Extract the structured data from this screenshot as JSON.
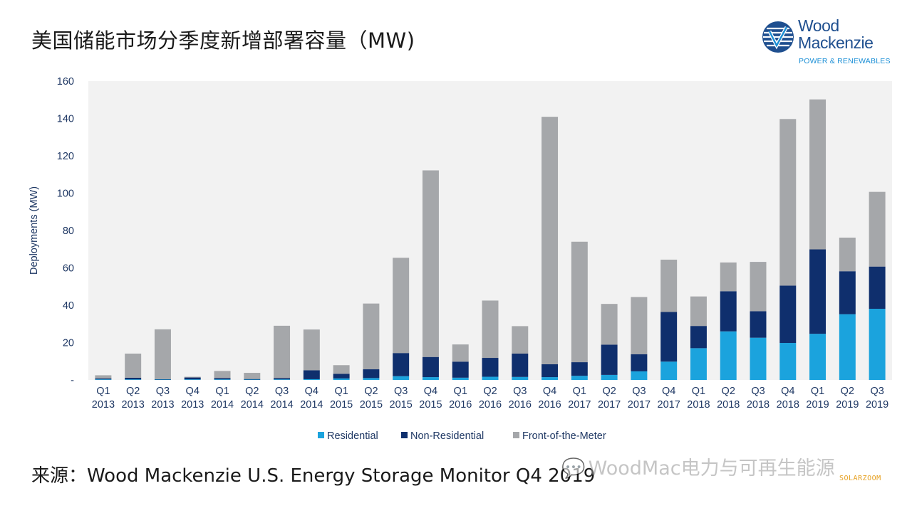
{
  "title": "美国储能市场分季度新增部署容量（MW)",
  "logo": {
    "line1": "Wood",
    "line2": "Mackenzie",
    "tagline": "POWER & RENEWABLES"
  },
  "source": "来源：Wood Mackenzie U.S. Energy Storage Monitor Q4 2019",
  "watermark": {
    "text": "WoodMac电力与可再生能源",
    "badge": "SOLARZOOM"
  },
  "colors": {
    "residential": "#1ba3dd",
    "non_residential": "#0f2f6d",
    "front_of_meter": "#a5a7aa",
    "plot_bg": "#f2f2f2",
    "axis_text": "#1f3864"
  },
  "chart_data": {
    "type": "bar",
    "stacked": true,
    "ylabel": "Deployments (MW)",
    "ylim": [
      0,
      160
    ],
    "yticks": [
      0,
      20,
      40,
      60,
      80,
      100,
      120,
      140,
      160
    ],
    "ytick_labels": [
      "-",
      "20",
      "40",
      "60",
      "80",
      "100",
      "120",
      "140",
      "160"
    ],
    "grid": false,
    "legend_position": "bottom",
    "categories": [
      [
        "Q1",
        "2013"
      ],
      [
        "Q2",
        "2013"
      ],
      [
        "Q3",
        "2013"
      ],
      [
        "Q4",
        "2013"
      ],
      [
        "Q1",
        "2014"
      ],
      [
        "Q2",
        "2014"
      ],
      [
        "Q3",
        "2014"
      ],
      [
        "Q4",
        "2014"
      ],
      [
        "Q1",
        "2015"
      ],
      [
        "Q2",
        "2015"
      ],
      [
        "Q3",
        "2015"
      ],
      [
        "Q4",
        "2015"
      ],
      [
        "Q1",
        "2016"
      ],
      [
        "Q2",
        "2016"
      ],
      [
        "Q3",
        "2016"
      ],
      [
        "Q4",
        "2016"
      ],
      [
        "Q1",
        "2017"
      ],
      [
        "Q2",
        "2017"
      ],
      [
        "Q3",
        "2017"
      ],
      [
        "Q4",
        "2017"
      ],
      [
        "Q1",
        "2018"
      ],
      [
        "Q2",
        "2018"
      ],
      [
        "Q3",
        "2018"
      ],
      [
        "Q4",
        "2018"
      ],
      [
        "Q1",
        "2019"
      ],
      [
        "Q2",
        "2019"
      ],
      [
        "Q3",
        "2019"
      ]
    ],
    "series": [
      {
        "name": "Residential",
        "color": "#1ba3dd",
        "values": [
          0.3,
          0.3,
          0.2,
          0.3,
          0.3,
          0.2,
          0.3,
          0.4,
          0.8,
          1.0,
          2.0,
          1.5,
          1.2,
          1.7,
          1.6,
          1.5,
          2.2,
          2.7,
          4.6,
          9.8,
          17.0,
          26.0,
          22.6,
          19.8,
          24.7,
          35.2,
          38.1
        ]
      },
      {
        "name": "Non-Residential",
        "color": "#0f2f6d",
        "values": [
          0.5,
          0.9,
          0.2,
          1.0,
          0.7,
          0.3,
          0.7,
          4.8,
          2.5,
          4.7,
          12.4,
          10.8,
          8.6,
          10.1,
          12.5,
          6.9,
          7.3,
          16.2,
          9.2,
          26.6,
          11.9,
          21.5,
          14.2,
          30.7,
          45.2,
          23.0,
          22.6
        ]
      },
      {
        "name": "Front-of-the-Meter",
        "color": "#a5a7aa",
        "values": [
          1.7,
          12.9,
          26.7,
          0.4,
          3.8,
          3.3,
          28.0,
          21.8,
          4.6,
          35.2,
          51.0,
          99.9,
          9.2,
          30.7,
          14.7,
          132.5,
          64.5,
          21.8,
          30.6,
          28.0,
          15.8,
          15.4,
          26.4,
          89.2,
          80.3,
          18.0,
          40.0
        ]
      }
    ]
  }
}
